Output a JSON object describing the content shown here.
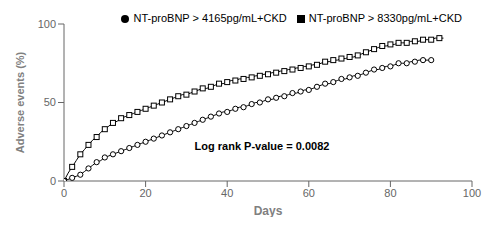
{
  "chart_data": {
    "type": "line",
    "xlabel": "Days",
    "ylabel": "Adverse events (%)",
    "annotation": "Log rank P-value = 0.0082",
    "xlim": [
      0,
      100
    ],
    "ylim": [
      0,
      100
    ],
    "xticks": [
      0,
      20,
      40,
      60,
      80,
      100
    ],
    "yticks": [
      0,
      50,
      100
    ],
    "grid": false,
    "legend": "upper right",
    "series": [
      {
        "name": "NT-proBNP > 8330pg/mL+CKD",
        "color": "#000000",
        "marker": "square",
        "line_style": "solid",
        "x": [
          0,
          1,
          2,
          3,
          4,
          5,
          6,
          7,
          8,
          9,
          10,
          11,
          12,
          13,
          14,
          15,
          16,
          17,
          18,
          19,
          20,
          21,
          22,
          23,
          24,
          25,
          26,
          27,
          28,
          29,
          30,
          31,
          32,
          33,
          34,
          35,
          36,
          37,
          38,
          39,
          40,
          41,
          42,
          43,
          44,
          45,
          46,
          47,
          48,
          49,
          50,
          51,
          52,
          53,
          54,
          55,
          56,
          57,
          58,
          59,
          60,
          61,
          62,
          63,
          64,
          65,
          66,
          67,
          68,
          69,
          70,
          71,
          72,
          73,
          74,
          75,
          76,
          77,
          78,
          79,
          80,
          81,
          82,
          83,
          84,
          85,
          86,
          87,
          88,
          89,
          90,
          91,
          92,
          93
        ],
        "values": [
          0,
          5,
          9,
          13,
          17,
          20,
          23,
          26,
          28,
          31,
          33,
          35,
          37,
          38,
          40,
          41,
          42,
          43,
          44,
          45,
          46,
          47,
          48,
          49,
          50,
          51,
          52,
          53,
          54,
          55,
          55,
          56,
          57,
          58,
          59,
          59,
          60,
          61,
          62,
          62,
          63,
          64,
          64,
          65,
          65,
          66,
          66,
          67,
          67,
          68,
          68,
          69,
          69,
          70,
          70,
          71,
          71,
          72,
          72,
          73,
          73,
          74,
          74,
          75,
          76,
          76,
          77,
          77,
          78,
          78,
          79,
          79,
          80,
          81,
          82,
          83,
          84,
          85,
          86,
          86,
          87,
          87,
          88,
          88,
          88,
          89,
          89,
          89,
          90,
          90,
          90,
          91,
          91,
          91
        ]
      },
      {
        "name": "NT-proBNP > 4165pg/mL+CKD",
        "color": "#000000",
        "marker": "circle",
        "line_style": "solid",
        "x": [
          0,
          1,
          2,
          3,
          4,
          5,
          6,
          7,
          8,
          9,
          10,
          11,
          12,
          13,
          14,
          15,
          16,
          17,
          18,
          19,
          20,
          21,
          22,
          23,
          24,
          25,
          26,
          27,
          28,
          29,
          30,
          31,
          32,
          33,
          34,
          35,
          36,
          37,
          38,
          39,
          40,
          41,
          42,
          43,
          44,
          45,
          46,
          47,
          48,
          49,
          50,
          51,
          52,
          53,
          54,
          55,
          56,
          57,
          58,
          59,
          60,
          61,
          62,
          63,
          64,
          65,
          66,
          67,
          68,
          69,
          70,
          71,
          72,
          73,
          74,
          75,
          76,
          77,
          78,
          79,
          80,
          81,
          82,
          83,
          84,
          85,
          86,
          87,
          88,
          89,
          90
        ],
        "values": [
          0,
          1,
          2,
          3,
          4,
          6,
          8,
          10,
          12,
          13,
          15,
          16,
          17,
          18,
          19,
          20,
          21,
          22,
          23,
          24,
          25,
          26,
          27,
          28,
          29,
          30,
          31,
          32,
          33,
          34,
          35,
          36,
          37,
          38,
          39,
          40,
          41,
          42,
          43,
          44,
          44,
          45,
          46,
          47,
          47,
          48,
          49,
          50,
          50,
          51,
          52,
          52,
          53,
          54,
          54,
          55,
          56,
          56,
          57,
          58,
          58,
          59,
          60,
          61,
          62,
          62,
          63,
          64,
          65,
          65,
          66,
          67,
          67,
          68,
          69,
          70,
          71,
          71,
          72,
          73,
          73,
          74,
          75,
          75,
          75,
          76,
          76,
          77,
          77,
          77,
          77
        ]
      }
    ]
  }
}
